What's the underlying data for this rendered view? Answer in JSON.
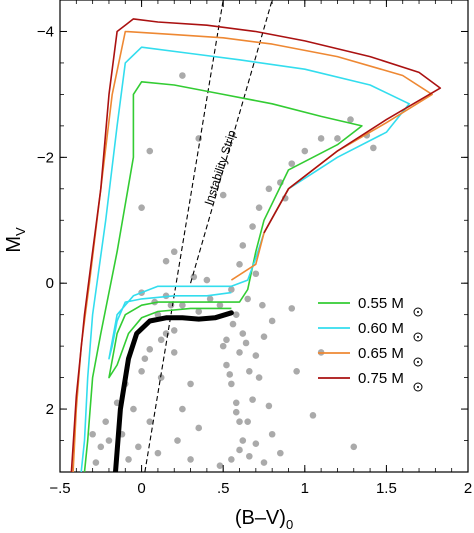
{
  "chart_data": {
    "type": "scatter",
    "title": "",
    "xlabel": "(B–V)",
    "xlabel_sub": "0",
    "ylabel": "M",
    "ylabel_sub": "V",
    "xlim": [
      -0.5,
      2.0
    ],
    "ylim": [
      3.0,
      -4.5
    ],
    "y_inverted": true,
    "grid": false,
    "legend_position": "lower-right",
    "x_ticks": [
      {
        "value": -0.5,
        "label": "−.5"
      },
      {
        "value": 0,
        "label": "0"
      },
      {
        "value": 0.5,
        "label": ".5"
      },
      {
        "value": 1.0,
        "label": "1"
      },
      {
        "value": 1.5,
        "label": "1.5"
      },
      {
        "value": 2.0,
        "label": "2"
      }
    ],
    "y_ticks": [
      {
        "value": -4,
        "label": "−4"
      },
      {
        "value": -2,
        "label": "−2"
      },
      {
        "value": 0,
        "label": "0"
      },
      {
        "value": 2,
        "label": "2"
      }
    ],
    "instability_strip": {
      "label": "Instability Strip",
      "blue_edge": [
        [
          0.02,
          3.0
        ],
        [
          0.5,
          -4.5
        ]
      ],
      "red_edge": [
        [
          0.3,
          0.0
        ],
        [
          0.8,
          -4.5
        ]
      ]
    },
    "zahb": [
      [
        -0.16,
        3.0
      ],
      [
        -0.13,
        2.0
      ],
      [
        -0.08,
        1.2
      ],
      [
        -0.03,
        0.8
      ],
      [
        0.05,
        0.6
      ],
      [
        0.15,
        0.55
      ],
      [
        0.25,
        0.55
      ],
      [
        0.35,
        0.57
      ],
      [
        0.45,
        0.55
      ],
      [
        0.55,
        0.47
      ]
    ],
    "legend": [
      {
        "mass": "0.55",
        "unit": "M",
        "color": "#33cc33"
      },
      {
        "mass": "0.60",
        "unit": "M",
        "color": "#33ddee"
      },
      {
        "mass": "0.65",
        "unit": "M",
        "color": "#ee8833"
      },
      {
        "mass": "0.75",
        "unit": "M",
        "color": "#aa1111"
      }
    ],
    "tracks": [
      {
        "mass": "0.55",
        "color": "#33cc33",
        "points": [
          [
            0.55,
            0.4
          ],
          [
            0.3,
            0.4
          ],
          [
            0.1,
            0.45
          ],
          [
            0.0,
            0.55
          ],
          [
            -0.08,
            0.8
          ],
          [
            -0.15,
            1.3
          ],
          [
            -0.2,
            1.5
          ],
          [
            -0.15,
            0.8
          ],
          [
            -0.1,
            0.5
          ],
          [
            0.0,
            0.35
          ],
          [
            0.1,
            0.3
          ],
          [
            0.3,
            0.3
          ],
          [
            0.5,
            0.3
          ],
          [
            0.6,
            0.3
          ],
          [
            0.65,
            0.1
          ],
          [
            0.7,
            -0.5
          ],
          [
            0.75,
            -1.0
          ],
          [
            0.9,
            -1.8
          ],
          [
            1.2,
            -2.2
          ],
          [
            1.35,
            -2.5
          ],
          [
            1.1,
            -2.65
          ],
          [
            0.8,
            -2.85
          ],
          [
            0.5,
            -3.0
          ],
          [
            0.2,
            -3.15
          ],
          [
            0.0,
            -3.2
          ],
          [
            -0.05,
            -3.0
          ],
          [
            -0.05,
            -2.0
          ],
          [
            -0.15,
            -0.5
          ],
          [
            -0.25,
            0.8
          ],
          [
            -0.3,
            1.5
          ],
          [
            -0.33,
            2.5
          ],
          [
            -0.35,
            3.0
          ]
        ]
      },
      {
        "mass": "0.60",
        "color": "#33ddee",
        "points": [
          [
            0.55,
            0.15
          ],
          [
            0.4,
            0.2
          ],
          [
            0.2,
            0.2
          ],
          [
            0.0,
            0.25
          ],
          [
            -0.1,
            0.3
          ],
          [
            -0.15,
            0.6
          ],
          [
            -0.18,
            1.0
          ],
          [
            -0.2,
            1.2
          ],
          [
            -0.15,
            0.5
          ],
          [
            -0.05,
            0.2
          ],
          [
            0.1,
            0.05
          ],
          [
            0.3,
            0.05
          ],
          [
            0.55,
            0.05
          ],
          [
            0.65,
            -0.05
          ],
          [
            0.7,
            -0.4
          ],
          [
            0.75,
            -0.8
          ],
          [
            0.9,
            -1.5
          ],
          [
            1.2,
            -2.0
          ],
          [
            1.5,
            -2.4
          ],
          [
            1.64,
            -2.85
          ],
          [
            1.4,
            -3.15
          ],
          [
            1.0,
            -3.4
          ],
          [
            0.6,
            -3.55
          ],
          [
            0.3,
            -3.65
          ],
          [
            0.0,
            -3.75
          ],
          [
            -0.1,
            -3.5
          ],
          [
            -0.15,
            -2.5
          ],
          [
            -0.22,
            -1.0
          ],
          [
            -0.3,
            0.5
          ],
          [
            -0.33,
            1.5
          ],
          [
            -0.35,
            2.5
          ],
          [
            -0.37,
            3.0
          ]
        ]
      },
      {
        "mass": "0.65",
        "color": "#ee8833",
        "points": [
          [
            0.55,
            -0.05
          ],
          [
            0.7,
            -0.3
          ],
          [
            0.75,
            -0.8
          ],
          [
            0.9,
            -1.5
          ],
          [
            1.2,
            -2.1
          ],
          [
            1.5,
            -2.55
          ],
          [
            1.78,
            -3.0
          ],
          [
            1.6,
            -3.3
          ],
          [
            1.2,
            -3.6
          ],
          [
            0.8,
            -3.8
          ],
          [
            0.5,
            -3.9
          ],
          [
            0.2,
            -3.95
          ],
          [
            -0.1,
            -4.0
          ],
          [
            -0.18,
            -3.0
          ],
          [
            -0.25,
            -1.5
          ],
          [
            -0.32,
            0.0
          ],
          [
            -0.37,
            1.0
          ],
          [
            -0.4,
            2.0
          ],
          [
            -0.42,
            3.0
          ]
        ]
      },
      {
        "mass": "0.75",
        "color": "#aa1111",
        "points": [
          [
            0.75,
            -0.8
          ],
          [
            0.9,
            -1.5
          ],
          [
            1.2,
            -2.1
          ],
          [
            1.5,
            -2.6
          ],
          [
            1.83,
            -3.1
          ],
          [
            1.7,
            -3.35
          ],
          [
            1.4,
            -3.6
          ],
          [
            1.0,
            -3.85
          ],
          [
            0.7,
            -4.0
          ],
          [
            0.4,
            -4.1
          ],
          [
            0.1,
            -4.15
          ],
          [
            -0.05,
            -4.2
          ],
          [
            -0.15,
            -4.0
          ],
          [
            -0.2,
            -3.0
          ],
          [
            -0.25,
            -1.5
          ],
          [
            -0.3,
            -0.5
          ],
          [
            -0.35,
            0.5
          ],
          [
            -0.4,
            1.8
          ],
          [
            -0.43,
            3.0
          ]
        ]
      }
    ],
    "stars": [
      [
        -0.08,
        2.8
      ],
      [
        -0.12,
        2.4
      ],
      [
        -0.05,
        2.0
      ],
      [
        -0.1,
        1.6
      ],
      [
        0.02,
        1.2
      ],
      [
        0.05,
        1.05
      ],
      [
        0.12,
        0.9
      ],
      [
        0.15,
        0.8
      ],
      [
        0.2,
        0.75
      ],
      [
        0.0,
        1.4
      ],
      [
        -0.02,
        2.6
      ],
      [
        0.05,
        2.2
      ],
      [
        -0.15,
        1.9
      ],
      [
        0.1,
        0.5
      ],
      [
        0.08,
        0.3
      ],
      [
        0.18,
        0.35
      ],
      [
        0.25,
        0.35
      ],
      [
        0.15,
        0.2
      ],
      [
        0.35,
        0.45
      ],
      [
        0.42,
        0.25
      ],
      [
        0.48,
        0.35
      ],
      [
        0.2,
        1.1
      ],
      [
        0.12,
        1.5
      ],
      [
        0.3,
        1.6
      ],
      [
        0.25,
        2.0
      ],
      [
        0.35,
        2.3
      ],
      [
        0.3,
        2.8
      ],
      [
        0.22,
        2.5
      ],
      [
        0.1,
        2.7
      ],
      [
        0.55,
        0.1
      ],
      [
        0.6,
        -0.3
      ],
      [
        0.62,
        -0.6
      ],
      [
        0.68,
        -0.9
      ],
      [
        0.72,
        -1.2
      ],
      [
        0.78,
        -1.5
      ],
      [
        0.85,
        -1.6
      ],
      [
        0.92,
        -1.9
      ],
      [
        1.0,
        -2.1
      ],
      [
        1.1,
        -2.3
      ],
      [
        1.2,
        -2.3
      ],
      [
        1.28,
        -2.6
      ],
      [
        1.38,
        -2.35
      ],
      [
        1.42,
        -2.15
      ],
      [
        0.88,
        -1.35
      ],
      [
        0.7,
        -0.15
      ],
      [
        0.65,
        0.25
      ],
      [
        0.58,
        0.5
      ],
      [
        0.52,
        0.9
      ],
      [
        0.6,
        1.1
      ],
      [
        0.66,
        1.4
      ],
      [
        0.5,
        1.0
      ],
      [
        0.52,
        1.3
      ],
      [
        0.55,
        1.6
      ],
      [
        0.58,
        1.9
      ],
      [
        0.6,
        2.2
      ],
      [
        0.62,
        2.5
      ],
      [
        0.55,
        2.8
      ],
      [
        0.48,
        2.9
      ],
      [
        0.6,
        2.65
      ],
      [
        0.66,
        2.75
      ],
      [
        0.7,
        2.55
      ],
      [
        0.65,
        2.2
      ],
      [
        0.68,
        1.85
      ],
      [
        0.72,
        1.5
      ],
      [
        0.7,
        1.15
      ],
      [
        0.62,
        0.8
      ],
      [
        0.75,
        0.85
      ],
      [
        0.8,
        0.6
      ],
      [
        0.74,
        0.35
      ],
      [
        0.78,
        1.95
      ],
      [
        0.8,
        2.4
      ],
      [
        0.75,
        2.85
      ],
      [
        0.85,
        2.7
      ],
      [
        0.56,
        0.65
      ],
      [
        0.54,
        1.45
      ],
      [
        0.58,
        2.05
      ],
      [
        0.64,
        0.95
      ],
      [
        -0.25,
        2.6
      ],
      [
        -0.3,
        2.4
      ],
      [
        -0.2,
        2.5
      ],
      [
        -0.28,
        2.85
      ],
      [
        -0.22,
        2.2
      ],
      [
        0.0,
        0.15
      ],
      [
        0.15,
        -0.35
      ],
      [
        0.2,
        -0.5
      ],
      [
        0.32,
        -0.1
      ],
      [
        0.4,
        -0.05
      ],
      [
        0.95,
        1.4
      ],
      [
        1.05,
        2.1
      ],
      [
        1.3,
        2.6
      ],
      [
        0.92,
        0.4
      ],
      [
        1.1,
        1.1
      ],
      [
        0.25,
        -3.3
      ],
      [
        0.05,
        -2.1
      ],
      [
        0.0,
        -1.2
      ],
      [
        0.5,
        -1.4
      ],
      [
        0.35,
        -2.3
      ]
    ]
  }
}
